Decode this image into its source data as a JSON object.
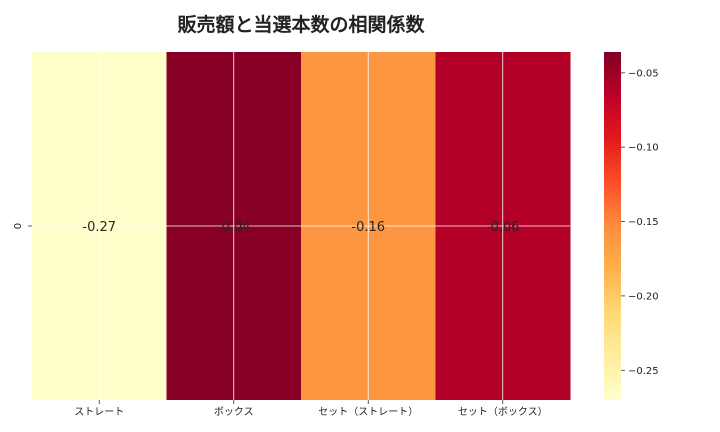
{
  "chart_data": {
    "type": "heatmap",
    "title": "販売額と当選本数の相関係数",
    "rows": [
      "0"
    ],
    "columns": [
      "ストレート",
      "ボックス",
      "セット（ストレート）",
      "セット（ボックス）"
    ],
    "values": [
      [
        -0.27,
        -0.04,
        -0.16,
        -0.06
      ]
    ],
    "annotations": [
      "-0.27",
      "-0.04",
      "-0.16",
      "-0.06"
    ],
    "colorbar": {
      "min": -0.27,
      "max": -0.036,
      "ticks": [
        -0.05,
        -0.1,
        -0.15,
        -0.2,
        -0.25
      ],
      "tick_labels": [
        "−0.05",
        "−0.10",
        "−0.15",
        "−0.20",
        "−0.25"
      ]
    },
    "colormap": [
      "#ffffcc",
      "#ffeda0",
      "#fed976",
      "#feb24c",
      "#fd8d3c",
      "#fc4e2a",
      "#e31a1c",
      "#bd0026",
      "#800026"
    ],
    "grid": true,
    "legend": "right"
  }
}
